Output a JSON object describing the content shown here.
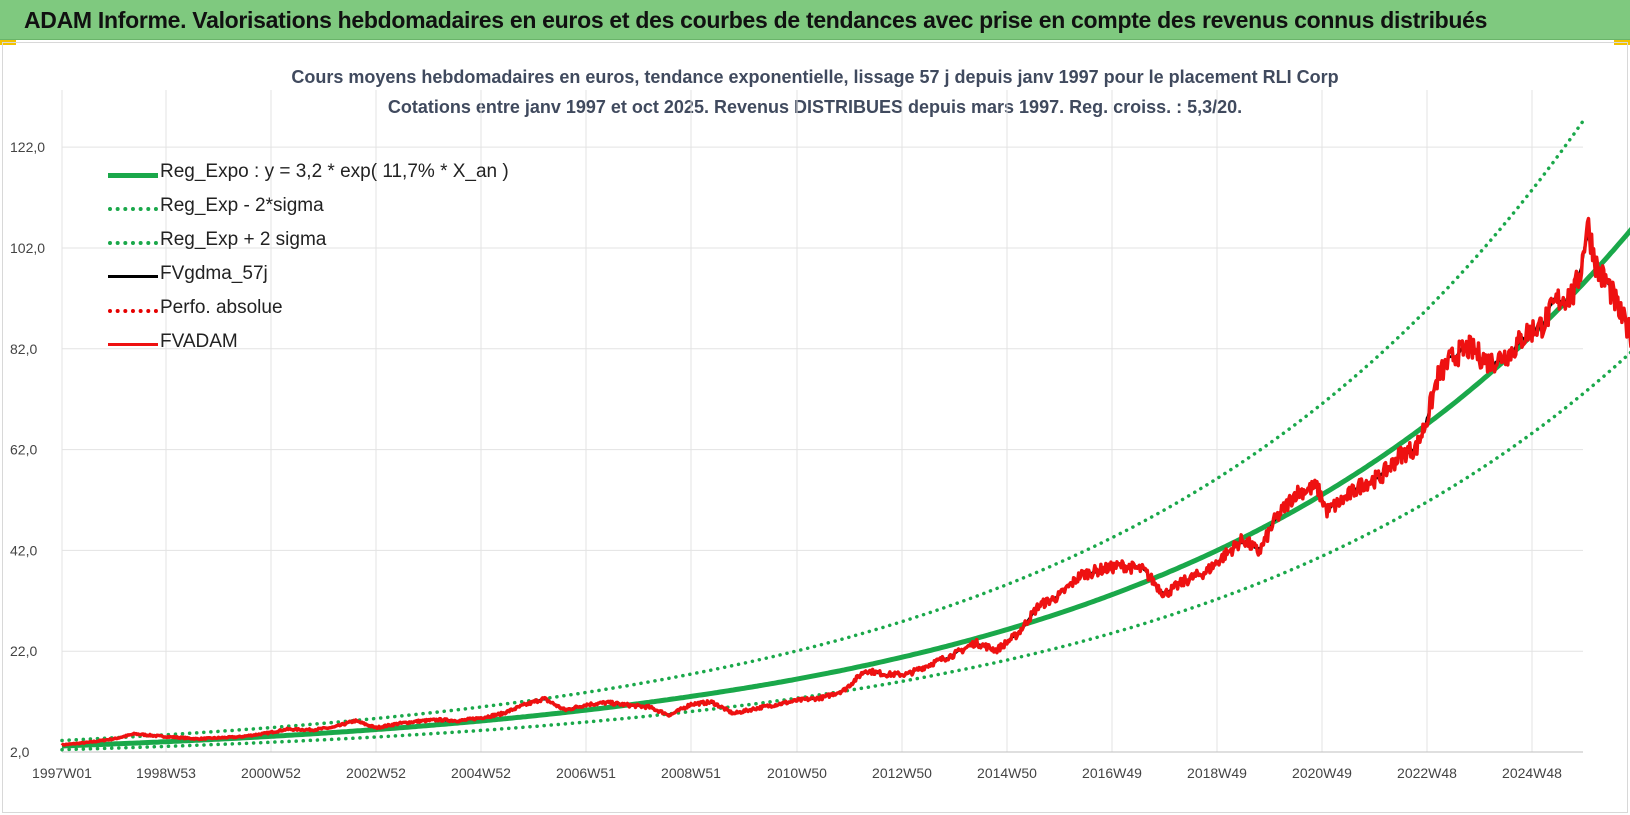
{
  "header": {
    "title": "ADAM Informe. Valorisations hebdomadaires en euros et des courbes de tendances avec prise en compte des revenus connus distribués"
  },
  "chart_data": {
    "type": "line",
    "title": "Cours moyens hebdomadaires en euros, tendance exponentielle, lissage 57 j depuis janv 1997 pour le placement RLI Corp",
    "subtitle": "Cotations entre janv 1997 et oct 2025. Revenus DISTRIBUES depuis mars 1997. Reg. croiss. : 5,3/20.",
    "xlabel": "",
    "ylabel": "",
    "x_range_years": [
      1997.0,
      2025.8
    ],
    "ylim": [
      2.0,
      126.0
    ],
    "y_ticks": [
      "2,0",
      "22,0",
      "42,0",
      "62,0",
      "82,0",
      "102,0",
      "122,0"
    ],
    "y_tick_values": [
      2,
      22,
      42,
      62,
      82,
      102,
      122
    ],
    "x_ticks": [
      "1997W01",
      "1998W53",
      "2000W52",
      "2002W52",
      "2004W52",
      "2006W51",
      "2008W51",
      "2010W50",
      "2012W50",
      "2014W50",
      "2016W49",
      "2018W49",
      "2020W49",
      "2022W48",
      "2024W48"
    ],
    "x_tick_years": [
      1997.0,
      1999.0,
      2001.0,
      2003.0,
      2005.0,
      2007.0,
      2009.0,
      2011.0,
      2013.0,
      2015.0,
      2017.0,
      2019.0,
      2021.0,
      2023.0,
      2025.0
    ],
    "grid": true,
    "legend_position": "top-left",
    "regression": {
      "a": 3.2,
      "rate": 0.117,
      "sigma_factor_low": 0.77,
      "sigma_factor_high": 1.34
    },
    "series": [
      {
        "name": "Reg_Expo : y = 3,2 * exp( 11,7% *  X_an )",
        "style": "solid",
        "color": "#1aa84a",
        "width": 5
      },
      {
        "name": "Reg_Exp - 2*sigma",
        "style": "dotted",
        "color": "#1aa84a",
        "width": 3.5
      },
      {
        "name": "Reg_Exp + 2 sigma",
        "style": "dotted",
        "color": "#1aa84a",
        "width": 3.5
      },
      {
        "name": "FVgdma_57j",
        "style": "solid",
        "color": "#000000",
        "width": 2.5
      },
      {
        "name": "Perfo. absolue",
        "style": "dotted",
        "color": "#e60000",
        "width": 2.5
      },
      {
        "name": "FVADAM",
        "style": "solid",
        "color": "#ee1111",
        "width": 3.5
      }
    ],
    "fvadam_points": [
      [
        1997.0,
        3.4
      ],
      [
        1997.5,
        3.9
      ],
      [
        1998.0,
        4.6
      ],
      [
        1998.4,
        5.6
      ],
      [
        1998.8,
        5.2
      ],
      [
        1999.2,
        4.9
      ],
      [
        1999.6,
        4.6
      ],
      [
        2000.0,
        4.8
      ],
      [
        2000.4,
        5.0
      ],
      [
        2000.9,
        5.7
      ],
      [
        2001.3,
        6.5
      ],
      [
        2001.8,
        6.4
      ],
      [
        2002.2,
        6.9
      ],
      [
        2002.6,
        8.2
      ],
      [
        2003.0,
        6.8
      ],
      [
        2003.4,
        7.6
      ],
      [
        2003.8,
        8.1
      ],
      [
        2004.2,
        8.4
      ],
      [
        2004.6,
        8.2
      ],
      [
        2005.0,
        8.8
      ],
      [
        2005.4,
        9.6
      ],
      [
        2005.8,
        11.2
      ],
      [
        2006.2,
        12.6
      ],
      [
        2006.6,
        10.3
      ],
      [
        2007.0,
        11.4
      ],
      [
        2007.4,
        11.8
      ],
      [
        2007.8,
        11.3
      ],
      [
        2008.2,
        10.9
      ],
      [
        2008.6,
        9.3
      ],
      [
        2009.0,
        11.5
      ],
      [
        2009.4,
        11.9
      ],
      [
        2009.8,
        9.6
      ],
      [
        2010.2,
        10.6
      ],
      [
        2010.6,
        11.4
      ],
      [
        2011.0,
        12.2
      ],
      [
        2011.5,
        12.8
      ],
      [
        2011.9,
        14.3
      ],
      [
        2012.3,
        18.2
      ],
      [
        2012.7,
        17.4
      ],
      [
        2013.1,
        17.4
      ],
      [
        2013.6,
        19.7
      ],
      [
        2014.0,
        21.4
      ],
      [
        2014.4,
        23.7
      ],
      [
        2014.8,
        22.2
      ],
      [
        2015.2,
        25.4
      ],
      [
        2015.6,
        31.0
      ],
      [
        2016.0,
        33.0
      ],
      [
        2016.4,
        37.1
      ],
      [
        2016.8,
        38.2
      ],
      [
        2017.2,
        39.0
      ],
      [
        2017.6,
        38.1
      ],
      [
        2018.0,
        33.3
      ],
      [
        2018.4,
        36.0
      ],
      [
        2018.8,
        37.8
      ],
      [
        2019.1,
        40.6
      ],
      [
        2019.5,
        44.2
      ],
      [
        2019.8,
        41.6
      ],
      [
        2020.1,
        47.9
      ],
      [
        2020.5,
        53.4
      ],
      [
        2020.9,
        54.6
      ],
      [
        2021.1,
        49.8
      ],
      [
        2021.4,
        52.0
      ],
      [
        2021.8,
        55.4
      ],
      [
        2022.1,
        56.4
      ],
      [
        2022.5,
        61.0
      ],
      [
        2022.8,
        62.4
      ],
      [
        2023.0,
        68.0
      ],
      [
        2023.2,
        76.3
      ],
      [
        2023.5,
        80.5
      ],
      [
        2023.8,
        82.2
      ],
      [
        2024.2,
        79.2
      ],
      [
        2024.6,
        81.4
      ],
      [
        2024.9,
        85.1
      ],
      [
        2025.2,
        86.8
      ],
      [
        2025.5,
        91.7
      ],
      [
        2025.8,
        92.8
      ],
      [
        2025.95,
        98.7
      ],
      [
        2026.05,
        107.2
      ],
      [
        2026.25,
        97.4
      ],
      [
        2026.45,
        94.8
      ],
      [
        2026.7,
        88.4
      ],
      [
        2026.95,
        83.8
      ],
      [
        2027.25,
        79.0
      ],
      [
        2027.45,
        75.7
      ]
    ]
  }
}
